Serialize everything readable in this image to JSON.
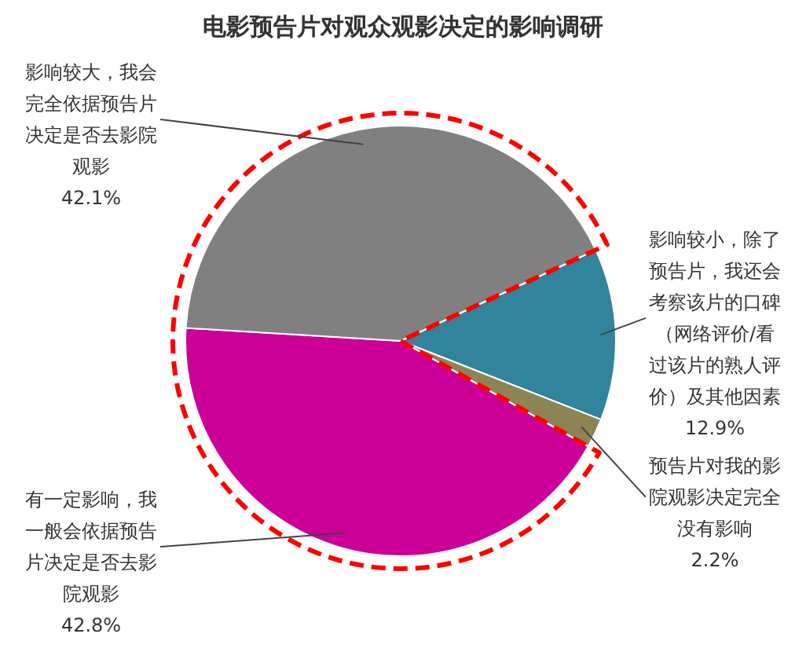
{
  "chart_data": {
    "type": "pie",
    "title": "电影预告片对观众观影决定的影响调研",
    "categories": [
      "影响较小，除了预告片，我还会考察该片的口碑（网络评价/看过该片的熟人评价）及其他因素",
      "预告片对我的影院观影决定完全没有影响",
      "有一定影响，我一般会依据预告片决定是否去影院观影",
      "影响较大，我会完全依据预告片决定是否去影院观影"
    ],
    "values": [
      12.9,
      2.2,
      42.8,
      42.1
    ],
    "value_labels": [
      "12.9%",
      "2.2%",
      "42.8%",
      "42.1%"
    ],
    "colors": [
      "#31849b",
      "#8c8454",
      "#cc0099",
      "#808080"
    ]
  }
}
